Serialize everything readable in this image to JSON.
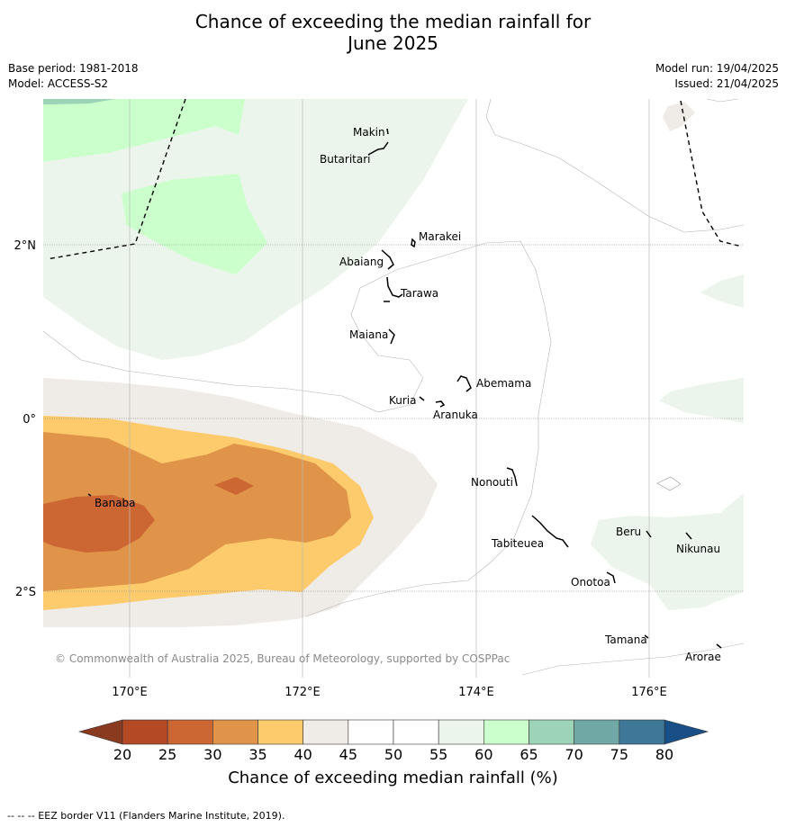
{
  "header": {
    "title_line1": "Chance of exceeding the median rainfall for",
    "title_line2": "June 2025",
    "base_period": "Base period: 1981-2018",
    "model": "Model: ACCESS-S2",
    "model_run": "Model run: 19/04/2025",
    "issued": "Issued: 21/04/2025"
  },
  "map": {
    "latitude_ticks": [
      "2°N",
      "0°",
      "2°S"
    ],
    "longitude_ticks": [
      "170°E",
      "172°E",
      "174°E",
      "176°E"
    ],
    "places": [
      "Makin",
      "Butaritari",
      "Marakei",
      "Abaiang",
      "Tarawa",
      "Maiana",
      "Abemama",
      "Kuria",
      "Aranuka",
      "Nonouti",
      "Banaba",
      "Tabiteuea",
      "Beru",
      "Nikunau",
      "Onotoa",
      "Tamana",
      "Arorae"
    ],
    "credit": "© Commonwealth of Australia 2025, Bureau of Meteorology, supported by COSPPac"
  },
  "colorbar": {
    "ticks": [
      "20",
      "25",
      "30",
      "35",
      "40",
      "45",
      "50",
      "55",
      "60",
      "65",
      "70",
      "75",
      "80"
    ],
    "colors": [
      "#b34a25",
      "#cc6633",
      "#e0944a",
      "#fdcb6b",
      "#efebe6",
      "#ffffff",
      "#ffffff",
      "#ebf5eb",
      "#cbffcb",
      "#9dd4b8",
      "#6fa8a4",
      "#3e7797"
    ],
    "under_color": "#8a3a1e",
    "over_color": "#174f86",
    "label": "Chance of exceeding median rainfall (%)"
  },
  "footer": {
    "eez_note": "--  --  -- EEZ border V11 (Flanders Marine Institute, 2019)."
  }
}
